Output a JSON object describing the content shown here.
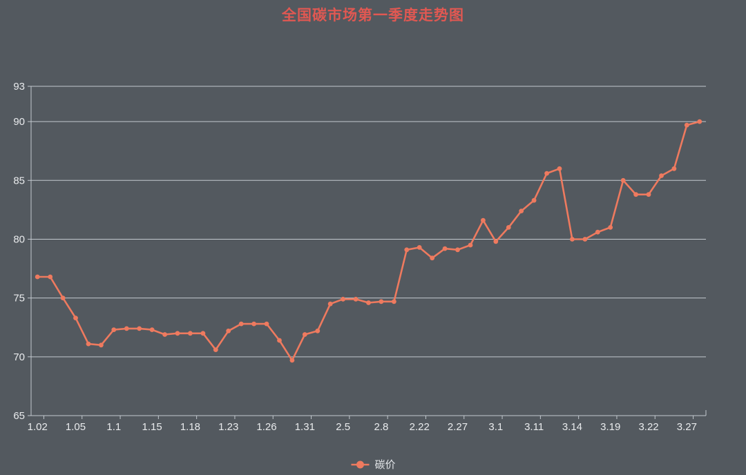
{
  "title": "全国碳市场第一季度走势图",
  "legend": {
    "items": [
      {
        "label": "碳价"
      }
    ]
  },
  "colors": {
    "background": "#53595f",
    "title": "#e15852",
    "series_line": "#ee7a5f",
    "grid_line": "#c3c9cf",
    "axis_line": "#c3c9cf",
    "axis_text": "#e9ebed",
    "legend_text": "#e3e6e9"
  },
  "chart_data": {
    "type": "line",
    "title": "全国碳市场第一季度走势图",
    "x_labels": [
      "1.02",
      "1.05",
      "1.1",
      "1.15",
      "1.18",
      "1.23",
      "1.26",
      "1.31",
      "2.5",
      "2.8",
      "2.22",
      "2.27",
      "3.1",
      "3.11",
      "3.14",
      "3.19",
      "3.22",
      "3.27"
    ],
    "x_label_interval": 3,
    "series": [
      {
        "name": "碳价",
        "color": "#ee7a5f",
        "values": [
          76.8,
          76.8,
          75.0,
          73.3,
          71.1,
          71.0,
          72.3,
          72.4,
          72.4,
          72.3,
          71.9,
          72.0,
          72.0,
          72.0,
          70.6,
          72.2,
          72.8,
          72.8,
          72.8,
          71.4,
          69.7,
          71.9,
          72.2,
          74.5,
          74.9,
          74.9,
          74.6,
          74.7,
          74.7,
          79.1,
          79.3,
          78.4,
          79.2,
          79.1,
          79.5,
          81.6,
          79.8,
          81.0,
          82.4,
          83.3,
          85.6,
          86.0,
          80.0,
          80.0,
          80.6,
          81.0,
          85.0,
          83.8,
          83.8,
          85.4,
          86.0,
          89.7,
          90.0
        ]
      }
    ],
    "y_ticks": [
      65,
      70,
      75,
      80,
      85,
      90,
      93
    ],
    "ylim": [
      65,
      93
    ],
    "grid": true,
    "legend_position": "bottom"
  }
}
